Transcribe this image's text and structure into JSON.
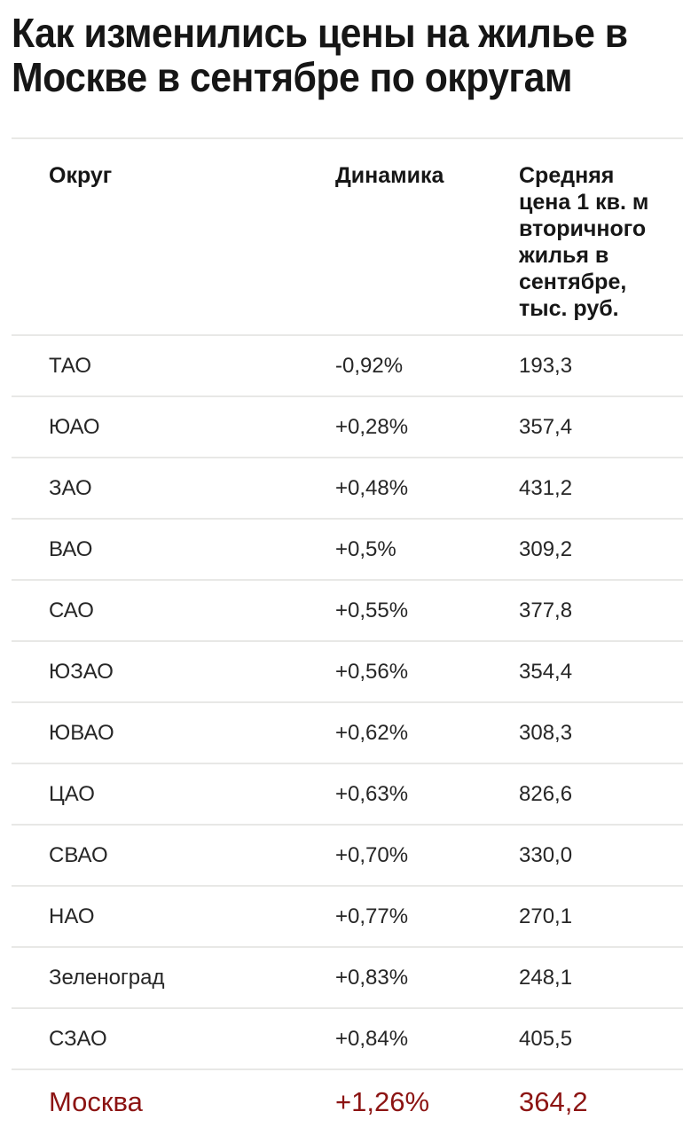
{
  "title_lines": [
    "Как изменились цены на жилье в",
    "Москве в сентябре по округам"
  ],
  "table": {
    "headers": [
      {
        "label": "Округ"
      },
      {
        "label": "Динамика"
      },
      {
        "label": "Средняя цена 1 кв. м вторичного жилья в сентябре, тыс. руб."
      }
    ],
    "rows": [
      {
        "district": "ТАО",
        "dynamics": "-0,92%",
        "price": "193,3"
      },
      {
        "district": "ЮАО",
        "dynamics": "+0,28%",
        "price": "357,4"
      },
      {
        "district": "ЗАО",
        "dynamics": "+0,48%",
        "price": "431,2"
      },
      {
        "district": "ВАО",
        "dynamics": "+0,5%",
        "price": "309,2"
      },
      {
        "district": "САО",
        "dynamics": "+0,55%",
        "price": "377,8"
      },
      {
        "district": "ЮЗАО",
        "dynamics": "+0,56%",
        "price": "354,4"
      },
      {
        "district": "ЮВАО",
        "dynamics": "+0,62%",
        "price": "308,3"
      },
      {
        "district": "ЦАО",
        "dynamics": "+0,63%",
        "price": "826,6"
      },
      {
        "district": "СВАО",
        "dynamics": "+0,70%",
        "price": "330,0"
      },
      {
        "district": "НАО",
        "dynamics": "+0,77%",
        "price": "270,1"
      },
      {
        "district": "Зеленоград",
        "dynamics": "+0,83%",
        "price": "248,1"
      },
      {
        "district": "СЗАО",
        "dynamics": "+0,84%",
        "price": "405,5"
      }
    ],
    "summary_row": {
      "district": "Москва",
      "dynamics": "+1,26%",
      "price": "364,2"
    }
  },
  "colors": {
    "title": "#161616",
    "text": "#262626",
    "divider": "#e8e8e6",
    "summary_red": "#8c1413",
    "background": "#ffffff"
  },
  "chart_data": {
    "type": "table",
    "title": "Как изменились цены на жилье в Москве в сентябре по округам",
    "columns": [
      "Округ",
      "Динамика",
      "Средняя цена 1 кв. м вторичного жилья в сентябре, тыс. руб."
    ],
    "rows": [
      {
        "district": "ТАО",
        "dynamics_pct": -0.92,
        "price_k_rub": 193.3
      },
      {
        "district": "ЮАО",
        "dynamics_pct": 0.28,
        "price_k_rub": 357.4
      },
      {
        "district": "ЗАО",
        "dynamics_pct": 0.48,
        "price_k_rub": 431.2
      },
      {
        "district": "ВАО",
        "dynamics_pct": 0.5,
        "price_k_rub": 309.2
      },
      {
        "district": "САО",
        "dynamics_pct": 0.55,
        "price_k_rub": 377.8
      },
      {
        "district": "ЮЗАО",
        "dynamics_pct": 0.56,
        "price_k_rub": 354.4
      },
      {
        "district": "ЮВАО",
        "dynamics_pct": 0.62,
        "price_k_rub": 308.3
      },
      {
        "district": "ЦАО",
        "dynamics_pct": 0.63,
        "price_k_rub": 826.6
      },
      {
        "district": "СВАО",
        "dynamics_pct": 0.7,
        "price_k_rub": 330.0
      },
      {
        "district": "НАО",
        "dynamics_pct": 0.77,
        "price_k_rub": 270.1
      },
      {
        "district": "Зеленоград",
        "dynamics_pct": 0.83,
        "price_k_rub": 248.1
      },
      {
        "district": "СЗАО",
        "dynamics_pct": 0.84,
        "price_k_rub": 405.5
      },
      {
        "district": "Москва",
        "dynamics_pct": 1.26,
        "price_k_rub": 364.2
      }
    ],
    "layout": {
      "sort_order": "dynamics ascending",
      "summary_row": "Москва",
      "grid": "horizontal dividers only"
    }
  }
}
